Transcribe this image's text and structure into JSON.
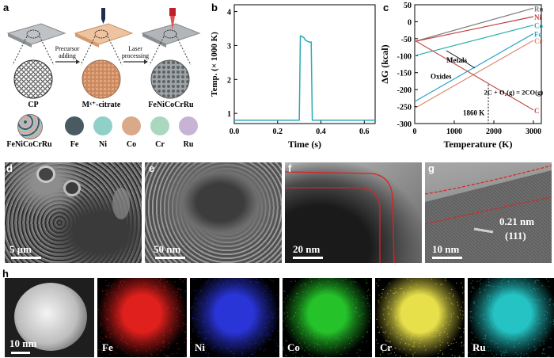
{
  "panel_labels": {
    "a": "a",
    "b": "b",
    "c": "c",
    "d": "d",
    "e": "e",
    "f": "f",
    "g": "g",
    "h": "h"
  },
  "schematic": {
    "stages": [
      "CP",
      "Mˣ⁺-citrate",
      "FeNiCoCrRu"
    ],
    "arrow1": "Precursor adding",
    "arrow2": "Laser processing",
    "legend": [
      {
        "label": "FeNiCoCrRu",
        "color": "#9aa3a8"
      },
      {
        "label": "Fe",
        "color": "#4a5a63"
      },
      {
        "label": "Ni",
        "color": "#8fd0c9"
      },
      {
        "label": "Co",
        "color": "#d9a98a"
      },
      {
        "label": "Cr",
        "color": "#a9d8bf"
      },
      {
        "label": "Ru",
        "color": "#c7b3d6"
      }
    ]
  },
  "chart_data": [
    {
      "type": "line",
      "xlabel": "Time (s)",
      "ylabel": "Temp. (× 1000 K)",
      "xlim": [
        0,
        0.65
      ],
      "ylim": [
        0.7,
        4.2
      ],
      "xticks": [
        "0.0",
        "0.2",
        "0.4",
        "0.6"
      ],
      "yticks": [
        "1",
        "2",
        "3",
        "4"
      ],
      "series": [
        {
          "name": "",
          "color": "#29a9b6",
          "x": [
            0,
            0.3,
            0.305,
            0.32,
            0.33,
            0.345,
            0.355,
            0.36,
            0.65
          ],
          "y": [
            0.8,
            0.8,
            3.28,
            3.24,
            3.15,
            3.1,
            3.1,
            0.8,
            0.8
          ]
        }
      ]
    },
    {
      "type": "line",
      "xlabel": "Temperature (K)",
      "ylabel": "ΔG (kcal)",
      "xlim": [
        0,
        3200
      ],
      "ylim": [
        -300,
        50
      ],
      "xticks": [
        "0",
        "1000",
        "2000",
        "3000"
      ],
      "yticks": [
        "50",
        "0",
        "-50",
        "-100",
        "-150",
        "-200",
        "-250",
        "-300"
      ],
      "series": [
        {
          "name": "Ru",
          "color": "#7a7a7a",
          "x": [
            0,
            3000
          ],
          "y": [
            -58,
            40
          ]
        },
        {
          "name": "Ni",
          "color": "#c23b3b",
          "x": [
            0,
            3000
          ],
          "y": [
            -58,
            15
          ]
        },
        {
          "name": "Co",
          "color": "#2ab0a8",
          "x": [
            0,
            3000
          ],
          "y": [
            -100,
            -10
          ]
        },
        {
          "name": "Fe",
          "color": "#2aa3c9",
          "x": [
            0,
            3000
          ],
          "y": [
            -235,
            -35
          ]
        },
        {
          "name": "Cr",
          "color": "#e08a70",
          "x": [
            0,
            3000
          ],
          "y": [
            -255,
            -55
          ]
        },
        {
          "name": "C",
          "color": "#c0504d",
          "x": [
            0,
            3000
          ],
          "y": [
            -55,
            -260
          ]
        }
      ],
      "annotations": {
        "metals": "Metals",
        "oxides": "Oxides",
        "reaction": "2C + O₂(g) = 2CO(g)",
        "temp": "1860 K"
      }
    }
  ],
  "micrographs": {
    "d_scale": "5 μm",
    "e_scale": "50 nm",
    "f_scale": "20 nm",
    "g_scale": "10 nm",
    "g_spacing": "0.21 nm",
    "g_plane": "(111)"
  },
  "mapping": {
    "scale": "10 nm",
    "elements": [
      {
        "label": "Fe",
        "color": "#e0201d"
      },
      {
        "label": "Ni",
        "color": "#2a35d8"
      },
      {
        "label": "Co",
        "color": "#25c22a"
      },
      {
        "label": "Cr",
        "color": "#e8e04a"
      },
      {
        "label": "Ru",
        "color": "#25c3c3"
      }
    ]
  }
}
